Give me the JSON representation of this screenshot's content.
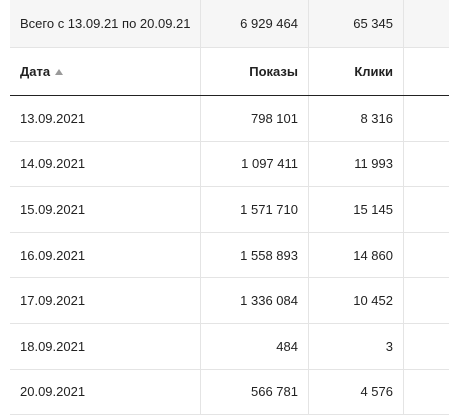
{
  "totals": {
    "label": "Всего с 13.09.21 по 20.09.21",
    "impressions": "6 929 464",
    "clicks": "65 345"
  },
  "header": {
    "date": "Дата",
    "impressions": "Показы",
    "clicks": "Клики"
  },
  "rows": [
    {
      "date": "13.09.2021",
      "impressions": "798 101",
      "clicks": "8 316"
    },
    {
      "date": "14.09.2021",
      "impressions": "1 097 411",
      "clicks": "11 993"
    },
    {
      "date": "15.09.2021",
      "impressions": "1 571 710",
      "clicks": "15 145"
    },
    {
      "date": "16.09.2021",
      "impressions": "1 558 893",
      "clicks": "14 860"
    },
    {
      "date": "17.09.2021",
      "impressions": "1 336 084",
      "clicks": "10 452"
    },
    {
      "date": "18.09.2021",
      "impressions": "484",
      "clicks": "3"
    },
    {
      "date": "20.09.2021",
      "impressions": "566 781",
      "clicks": "4 576"
    }
  ]
}
